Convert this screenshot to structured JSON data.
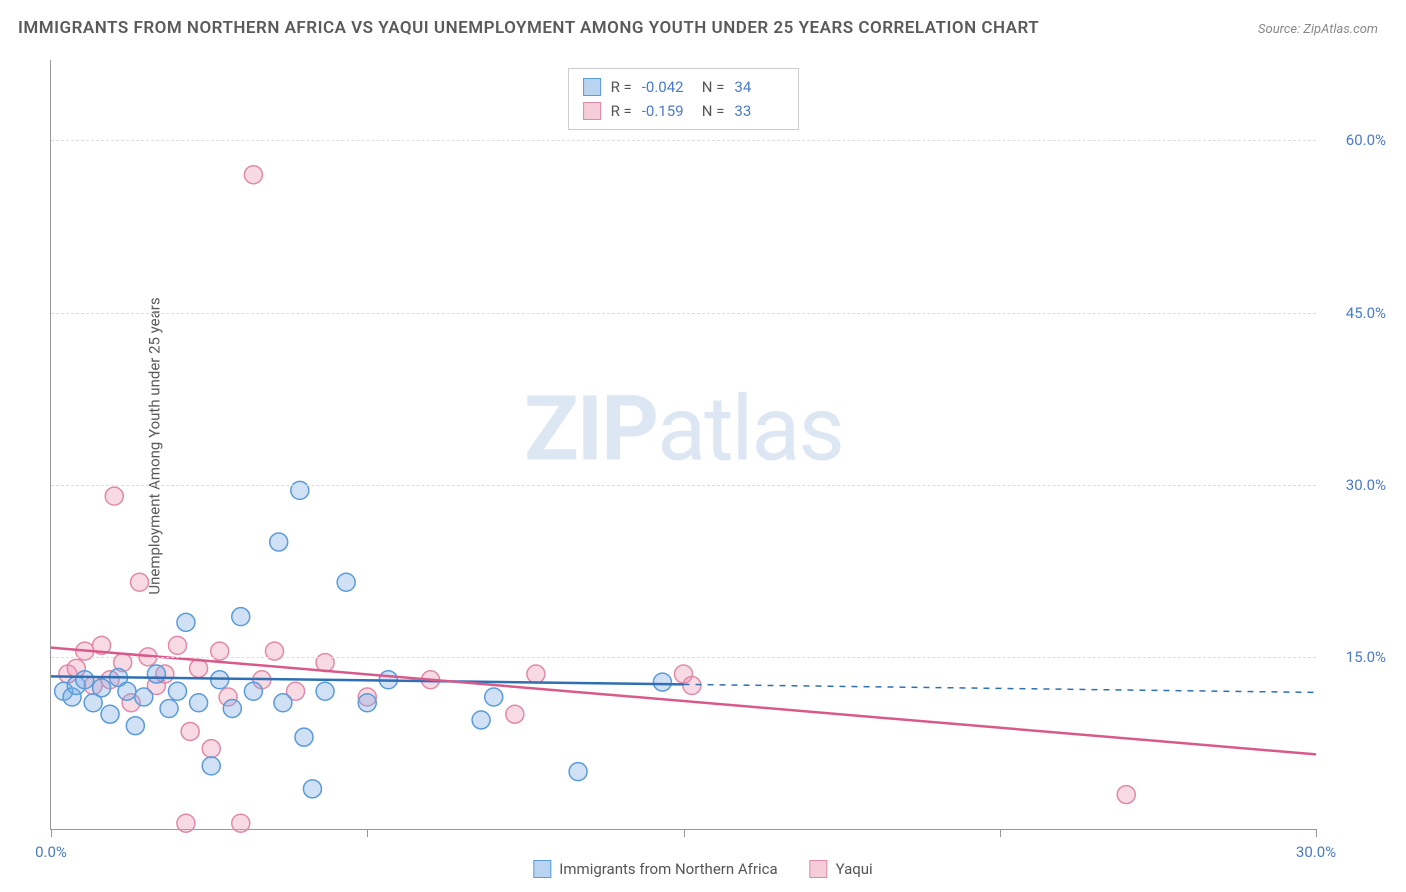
{
  "title": "IMMIGRANTS FROM NORTHERN AFRICA VS YAQUI UNEMPLOYMENT AMONG YOUTH UNDER 25 YEARS CORRELATION CHART",
  "source": "Source: ZipAtlas.com",
  "y_axis_label": "Unemployment Among Youth under 25 years",
  "watermark_bold": "ZIP",
  "watermark_light": "atlas",
  "chart": {
    "type": "scatter",
    "xlim": [
      0,
      30
    ],
    "ylim": [
      0,
      67
    ],
    "x_ticks": [
      0,
      7.5,
      15,
      22.5,
      30
    ],
    "x_tick_labels": {
      "0": "0.0%",
      "30": "30.0%"
    },
    "y_ticks": [
      15,
      30,
      45,
      60
    ],
    "y_tick_labels": {
      "15": "15.0%",
      "30": "30.0%",
      "45": "45.0%",
      "60": "60.0%"
    },
    "grid_color": "#dddddd",
    "background_color": "#ffffff",
    "marker_radius": 9,
    "marker_stroke_width": 1.5,
    "trend_line_width": 2.5,
    "trend_dash_width": 1.5
  },
  "series": [
    {
      "key": "immigrants",
      "label": "Immigrants from Northern Africa",
      "color_fill": "rgba(120,170,230,0.35)",
      "color_stroke": "#5a9bd8",
      "swatch_fill": "#b9d4f0",
      "swatch_stroke": "#5a9bd8",
      "R": "-0.042",
      "N": "34",
      "trend": {
        "x1": 0,
        "y1": 13.3,
        "x2": 15,
        "y2": 12.6,
        "dash_x2": 30,
        "dash_y2": 11.9,
        "color": "#2f6fb3"
      },
      "points": [
        [
          0.3,
          12.0
        ],
        [
          0.5,
          11.5
        ],
        [
          0.6,
          12.5
        ],
        [
          0.8,
          13.0
        ],
        [
          1.0,
          11.0
        ],
        [
          1.2,
          12.3
        ],
        [
          1.4,
          10.0
        ],
        [
          1.6,
          13.2
        ],
        [
          1.8,
          12.0
        ],
        [
          2.0,
          9.0
        ],
        [
          2.2,
          11.5
        ],
        [
          2.5,
          13.5
        ],
        [
          2.8,
          10.5
        ],
        [
          3.0,
          12.0
        ],
        [
          3.2,
          18.0
        ],
        [
          3.5,
          11.0
        ],
        [
          3.8,
          5.5
        ],
        [
          4.0,
          13.0
        ],
        [
          4.3,
          10.5
        ],
        [
          4.5,
          18.5
        ],
        [
          4.8,
          12.0
        ],
        [
          5.4,
          25.0
        ],
        [
          5.5,
          11.0
        ],
        [
          5.9,
          29.5
        ],
        [
          6.0,
          8.0
        ],
        [
          6.2,
          3.5
        ],
        [
          6.5,
          12.0
        ],
        [
          7.0,
          21.5
        ],
        [
          7.5,
          11.0
        ],
        [
          8.0,
          13.0
        ],
        [
          10.2,
          9.5
        ],
        [
          10.5,
          11.5
        ],
        [
          12.5,
          5.0
        ],
        [
          14.5,
          12.8
        ]
      ]
    },
    {
      "key": "yaqui",
      "label": "Yaqui",
      "color_fill": "rgba(235,150,180,0.35)",
      "color_stroke": "#e08aa8",
      "swatch_fill": "#f5cdd9",
      "swatch_stroke": "#e08aa8",
      "R": "-0.159",
      "N": "33",
      "trend": {
        "x1": 0,
        "y1": 15.8,
        "x2": 30,
        "y2": 6.5,
        "color": "#d85a8a"
      },
      "points": [
        [
          0.4,
          13.5
        ],
        [
          0.6,
          14.0
        ],
        [
          0.8,
          15.5
        ],
        [
          1.0,
          12.5
        ],
        [
          1.2,
          16.0
        ],
        [
          1.4,
          13.0
        ],
        [
          1.5,
          29.0
        ],
        [
          1.7,
          14.5
        ],
        [
          1.9,
          11.0
        ],
        [
          2.1,
          21.5
        ],
        [
          2.3,
          15.0
        ],
        [
          2.5,
          12.5
        ],
        [
          2.7,
          13.5
        ],
        [
          3.0,
          16.0
        ],
        [
          3.3,
          8.5
        ],
        [
          3.5,
          14.0
        ],
        [
          3.8,
          7.0
        ],
        [
          4.0,
          15.5
        ],
        [
          4.2,
          11.5
        ],
        [
          4.5,
          0.5
        ],
        [
          4.8,
          57.0
        ],
        [
          5.0,
          13.0
        ],
        [
          5.3,
          15.5
        ],
        [
          5.8,
          12.0
        ],
        [
          6.5,
          14.5
        ],
        [
          7.5,
          11.5
        ],
        [
          9.0,
          13.0
        ],
        [
          11.0,
          10.0
        ],
        [
          11.5,
          13.5
        ],
        [
          15.0,
          13.5
        ],
        [
          15.2,
          12.5
        ],
        [
          25.5,
          3.0
        ],
        [
          3.2,
          0.5
        ]
      ]
    }
  ],
  "legend_stats_labels": {
    "R": "R =",
    "N": "N ="
  }
}
